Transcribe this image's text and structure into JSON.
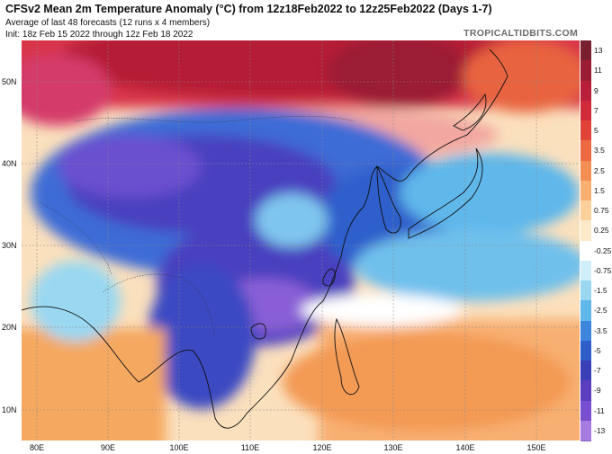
{
  "header": {
    "title": "CFSv2 Mean 2m Temperature Anomaly (°C) from 12z18Feb2022 to 12z25Feb2022 (Days 1-7)",
    "line2": "Average of last 48 forecasts (12 runs x 4 members)",
    "line3": "Init: 18z Feb 15 2022 through 12z Feb 18 2022",
    "brand": "TROPICALTIDBITS.COM"
  },
  "axes": {
    "lat_labels": [
      "50N",
      "40N",
      "30N",
      "20N",
      "10N"
    ],
    "lon_labels": [
      "80E",
      "90E",
      "100E",
      "110E",
      "120E",
      "130E",
      "140E",
      "150E"
    ]
  },
  "legend": {
    "ticks": [
      "13",
      "11",
      "9",
      "7",
      "5",
      "3.5",
      "2.5",
      "1.5",
      "0.75",
      "0.25",
      "-0.25",
      "-0.75",
      "-1.5",
      "-2.5",
      "-3.5",
      "-5",
      "-7",
      "-9",
      "-11",
      "-13"
    ],
    "colors": [
      "#7a1f2e",
      "#9b1d34",
      "#b81f3a",
      "#cf2b3a",
      "#e04438",
      "#ec6a43",
      "#f38f55",
      "#f8b072",
      "#fbd09a",
      "#fde8c9",
      "#ffffff",
      "#cfeef9",
      "#9ad8f1",
      "#5fb7ea",
      "#3d86db",
      "#2f5ecb",
      "#3a3fb7",
      "#5b3fbf",
      "#7a4fcf",
      "#a77ae0"
    ]
  }
}
